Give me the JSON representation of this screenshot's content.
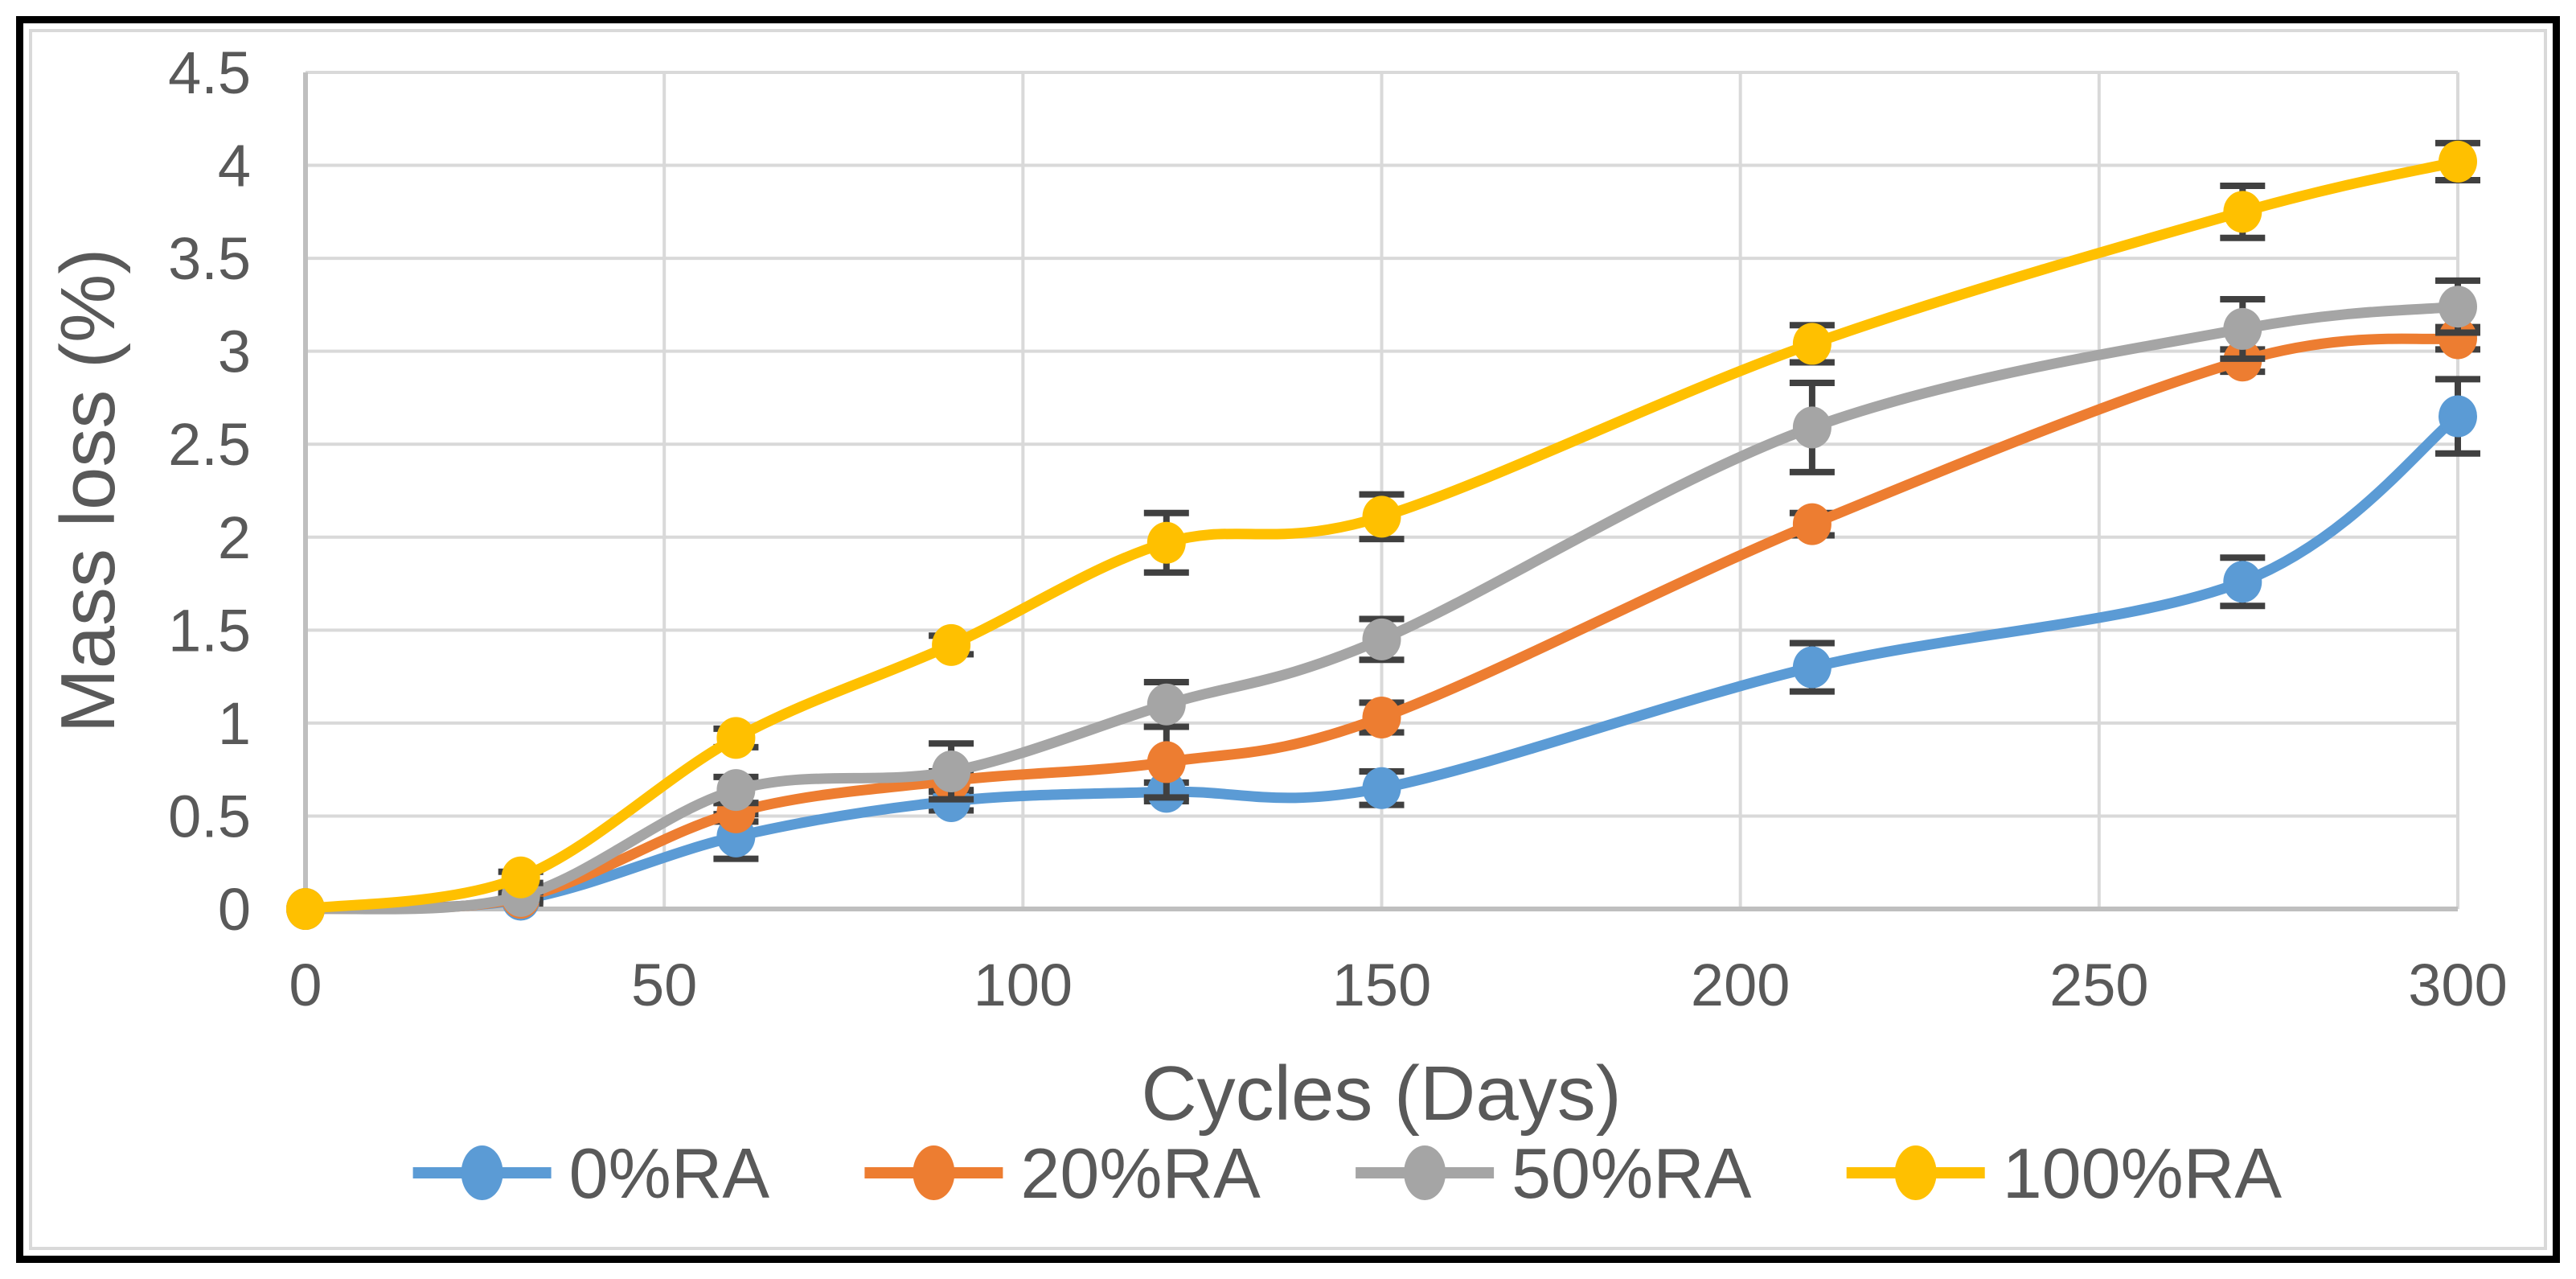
{
  "chart_data": {
    "type": "line",
    "title": "",
    "xlabel": "Cycles (Days)",
    "ylabel": "Mass loss (%)",
    "x": [
      0,
      30,
      60,
      90,
      120,
      150,
      210,
      270,
      300
    ],
    "xlim": [
      0,
      300
    ],
    "ylim": [
      0,
      4.5
    ],
    "x_ticks": [
      0,
      50,
      100,
      150,
      200,
      250,
      300
    ],
    "x_tick_labels": [
      "0",
      "50",
      "100",
      "150",
      "200",
      "250",
      "300"
    ],
    "y_ticks": [
      0,
      0.5,
      1,
      1.5,
      2,
      2.5,
      3,
      3.5,
      4,
      4.5
    ],
    "y_tick_labels": [
      "0",
      "0.5",
      "1",
      "1.5",
      "2",
      "2.5",
      "3",
      "3.5",
      "4",
      "4.5"
    ],
    "grid": true,
    "smooth_lines": true,
    "legend_position": "bottom",
    "series": [
      {
        "name": "0%RA",
        "color": "#5B9BD5",
        "values": [
          0,
          0.05,
          0.39,
          0.58,
          0.63,
          0.65,
          1.3,
          1.76,
          2.65
        ],
        "errors": [
          0,
          0.02,
          0.12,
          0.05,
          0.05,
          0.09,
          0.13,
          0.13,
          0.2
        ]
      },
      {
        "name": "20%RA",
        "color": "#ED7D31",
        "values": [
          0,
          0.06,
          0.52,
          0.69,
          0.79,
          1.03,
          2.07,
          2.95,
          3.07
        ],
        "errors": [
          0,
          0.02,
          0.05,
          0.05,
          0.19,
          0.08,
          0.06,
          0.06,
          0.06
        ]
      },
      {
        "name": "50%RA",
        "color": "#A5A5A5",
        "values": [
          0,
          0.07,
          0.64,
          0.74,
          1.1,
          1.45,
          2.59,
          3.12,
          3.24
        ],
        "errors": [
          0,
          0.02,
          0.07,
          0.15,
          0.12,
          0.11,
          0.24,
          0.16,
          0.14
        ]
      },
      {
        "name": "100%RA",
        "color": "#FFC000",
        "values": [
          0,
          0.17,
          0.92,
          1.42,
          1.97,
          2.11,
          3.04,
          3.75,
          4.02
        ],
        "errors": [
          0,
          0.03,
          0.05,
          0.05,
          0.16,
          0.12,
          0.1,
          0.14,
          0.1
        ]
      }
    ],
    "style": {
      "gridline_color": "#D9D9D9",
      "axis_line_color": "#BFBFBF",
      "tick_text_color": "#595959",
      "title_text_color": "#595959",
      "error_bar_color": "#404040",
      "outer_border_color": "#000000",
      "inner_border_color": "#D9D9D9",
      "background_color": "#FFFFFF"
    }
  }
}
